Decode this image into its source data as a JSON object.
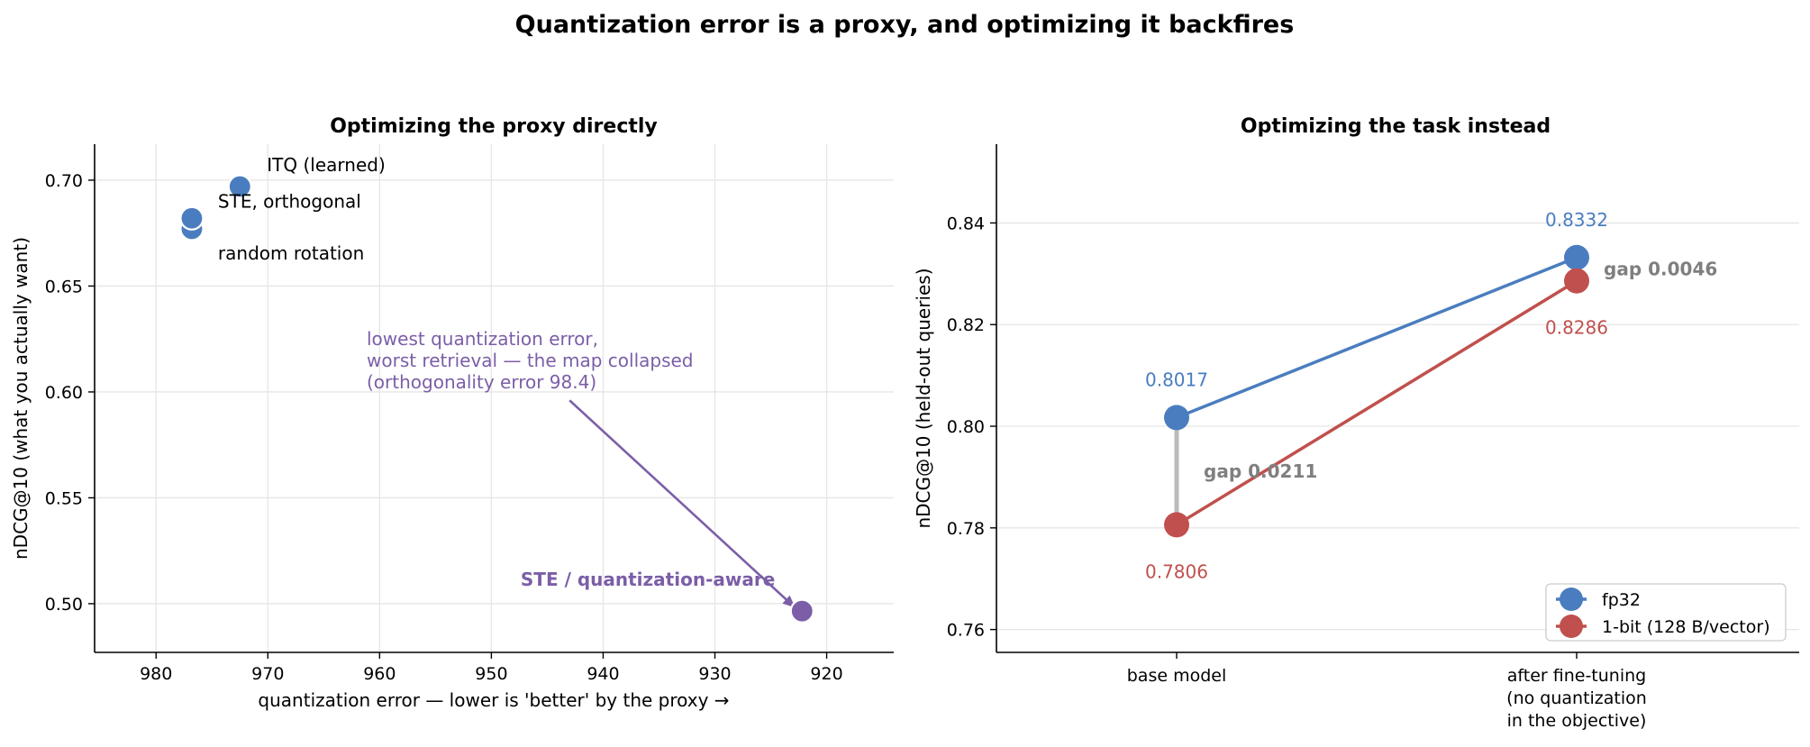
{
  "figure_title": "Quantization error is a proxy, and optimizing it backfires",
  "colors": {
    "blue": "#4a7dbf",
    "red": "#c0504d",
    "purple": "#7b5ea7",
    "gray": "#7f7f7f",
    "gap_line": "#bbbbbb"
  },
  "chart_data": [
    {
      "type": "scatter",
      "title": "Optimizing the proxy directly",
      "xlabel": "quantization error  —  lower is 'better' by the proxy →",
      "ylabel": "nDCG@10  (what you actually want)",
      "xlim": [
        985.5,
        914
      ],
      "ylim": [
        0.477,
        0.717
      ],
      "x_inverted": true,
      "xticks": [
        980,
        970,
        960,
        950,
        940,
        930,
        920
      ],
      "yticks": [
        0.5,
        0.55,
        0.6,
        0.65,
        0.7
      ],
      "ytick_labels": [
        "0.50",
        "0.55",
        "0.60",
        "0.65",
        "0.70"
      ],
      "grid": true,
      "points": [
        {
          "name": "random rotation",
          "x": 976.8,
          "y": 0.677,
          "label": "random rotation",
          "color": "#4a7dbf"
        },
        {
          "name": "STE, orthogonal",
          "x": 976.8,
          "y": 0.682,
          "label": "STE, orthogonal",
          "color": "#4a7dbf"
        },
        {
          "name": "ITQ (learned)",
          "x": 972.5,
          "y": 0.697,
          "label": "ITQ (learned)",
          "color": "#4a7dbf"
        },
        {
          "name": "STE / quantization-aware",
          "x": 922.2,
          "y": 0.4965,
          "label": "STE / quantization-aware",
          "color": "#7b5ea7"
        }
      ],
      "annotation": {
        "lines": [
          "lowest quantization error,",
          "worst retrieval — the map collapsed",
          "(orthogonality error 98.4)"
        ],
        "arrow_from": [
          943,
          0.596
        ],
        "arrow_to": [
          922.8,
          0.498
        ]
      }
    },
    {
      "type": "line",
      "title": "Optimizing the task instead",
      "ylabel": "nDCG@10  (held-out queries)",
      "categories": [
        "base model",
        "after fine-tuning\n(no quantization\nin the objective)"
      ],
      "ylim": [
        0.7555,
        0.8555
      ],
      "yticks": [
        0.76,
        0.78,
        0.8,
        0.82,
        0.84
      ],
      "ytick_labels": [
        "0.76",
        "0.78",
        "0.80",
        "0.82",
        "0.84"
      ],
      "grid": "y",
      "legend_position": "lower right",
      "series": [
        {
          "name": "fp32",
          "values": [
            0.8017,
            0.8332
          ],
          "labels": [
            "0.8017",
            "0.8332"
          ],
          "color": "#4a7dbf"
        },
        {
          "name": "1-bit (128 B/vector)",
          "values": [
            0.7806,
            0.8286
          ],
          "labels": [
            "0.7806",
            "0.8286"
          ],
          "color": "#c0504d"
        }
      ],
      "gap_annotations": [
        "gap 0.0211",
        "gap 0.0046"
      ]
    }
  ]
}
